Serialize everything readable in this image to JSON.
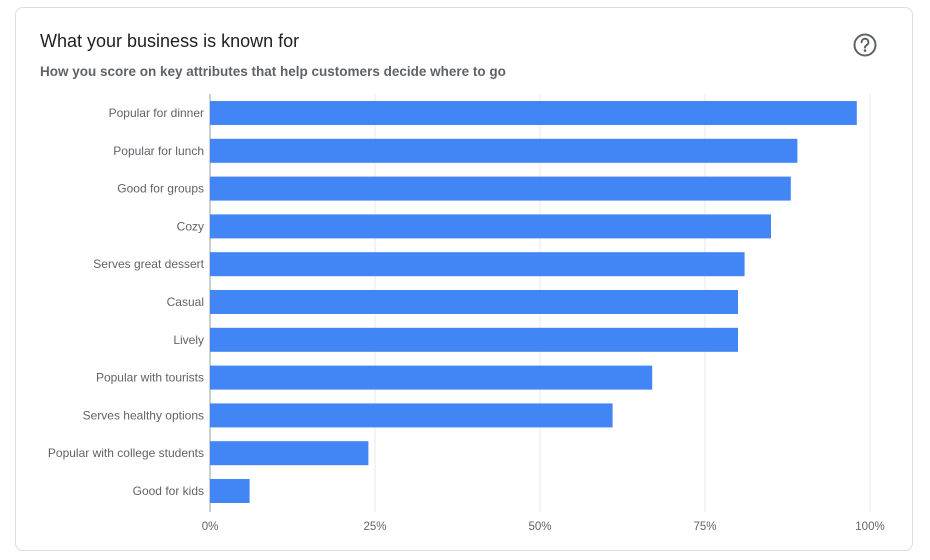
{
  "header": {
    "title": "What your business is known for",
    "subtitle": "How you score on key attributes that help customers decide where to go",
    "help_icon": "help-circle-icon"
  },
  "colors": {
    "bar": "#4285f4",
    "grid": "#e8eaed",
    "axis": "#9aa0a6"
  },
  "chart_data": {
    "type": "bar",
    "orientation": "horizontal",
    "title": "What your business is known for",
    "subtitle": "How you score on key attributes that help customers decide where to go",
    "categories": [
      "Popular for dinner",
      "Popular for lunch",
      "Good for groups",
      "Cozy",
      "Serves great dessert",
      "Casual",
      "Lively",
      "Popular with tourists",
      "Serves healthy options",
      "Popular with college students",
      "Good for kids"
    ],
    "values": [
      98,
      89,
      88,
      85,
      81,
      80,
      80,
      67,
      61,
      24,
      6
    ],
    "xlim": [
      0,
      100
    ],
    "xticks": [
      0,
      25,
      50,
      75,
      100
    ],
    "xtick_labels": [
      "0%",
      "25%",
      "50%",
      "75%",
      "100%"
    ],
    "grid": true
  }
}
